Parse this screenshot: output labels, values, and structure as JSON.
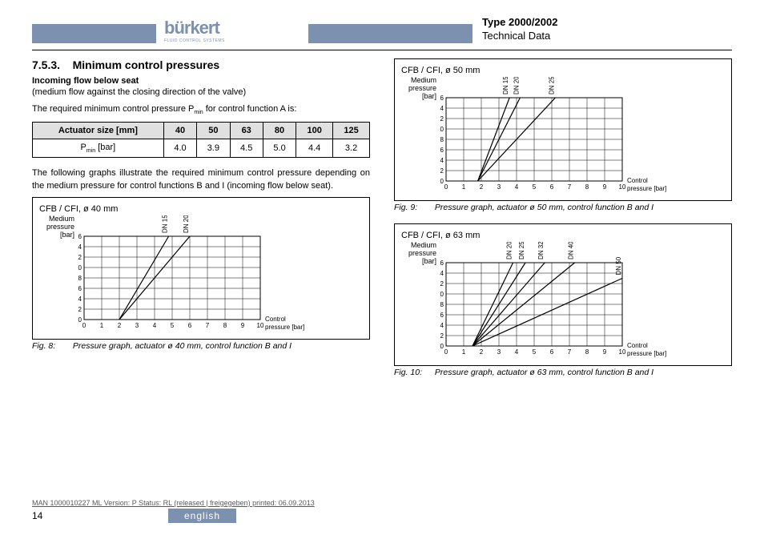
{
  "header": {
    "logo": "bürkert",
    "logo_sub": "FLUID CONTROL SYSTEMS",
    "type": "Type 2000/2002",
    "subtitle": "Technical Data",
    "logo_color": "#7c90b0",
    "bar_color": "#7c90b0"
  },
  "section": {
    "num": "7.5.3.",
    "title": "Minimum control pressures",
    "subhead": "Incoming flow below seat",
    "line1": "(medium flow against the closing direction of the valve)",
    "line2_a": "The required minimum control pressure P",
    "line2_sub": "min",
    "line2_b": " for control function A is:",
    "para2": "The following graphs illustrate the required minimum control pressure depending on the medium pressure for control functions B and I (incoming flow below seat)."
  },
  "table": {
    "header_label": "Actuator size [mm]",
    "cols": [
      "40",
      "50",
      "63",
      "80",
      "100",
      "125"
    ],
    "row_label_a": "P",
    "row_label_sub": "min",
    "row_label_b": " [bar]",
    "row": [
      "4.0",
      "3.9",
      "4.5",
      "5.0",
      "4.4",
      "3.2"
    ]
  },
  "chart_common": {
    "ylabel": "Medium pressure [bar]",
    "xlabel": "Control pressure [bar]",
    "x_ticks": [
      0,
      1,
      2,
      3,
      4,
      5,
      6,
      7,
      8,
      9,
      10
    ],
    "y_ticks": [
      0,
      2,
      4,
      6,
      8,
      10,
      12,
      14,
      16
    ],
    "grid_color": "#000000",
    "line_color": "#000000",
    "bg": "#ffffff"
  },
  "charts": [
    {
      "title": "CFB / CFI, ø 40 mm",
      "caption_label": "Fig. 8:",
      "caption": "Pressure graph, actuator ø 40 mm, control function B and I",
      "lines": [
        {
          "label": "DN 15",
          "points": [
            [
              2.0,
              0
            ],
            [
              4.8,
              16
            ]
          ]
        },
        {
          "label": "DN 20",
          "points": [
            [
              2.0,
              0
            ],
            [
              6.0,
              16
            ]
          ]
        }
      ]
    },
    {
      "title": "CFB / CFI, ø 50 mm",
      "caption_label": "Fig. 9:",
      "caption": "Pressure graph, actuator ø 50 mm, control function B and I",
      "lines": [
        {
          "label": "DN 15",
          "points": [
            [
              1.8,
              0
            ],
            [
              3.6,
              16
            ]
          ]
        },
        {
          "label": "DN 20",
          "points": [
            [
              1.8,
              0
            ],
            [
              4.2,
              16
            ]
          ]
        },
        {
          "label": "DN 25",
          "points": [
            [
              1.8,
              0
            ],
            [
              6.2,
              16
            ]
          ]
        }
      ]
    },
    {
      "title": "CFB / CFI, ø 63 mm",
      "caption_label": "Fig. 10:",
      "caption": "Pressure graph, actuator ø 63 mm, control function B and I",
      "lines": [
        {
          "label": "DN 20",
          "points": [
            [
              1.5,
              0
            ],
            [
              3.8,
              16
            ]
          ]
        },
        {
          "label": "DN 25",
          "points": [
            [
              1.5,
              0
            ],
            [
              4.5,
              16
            ]
          ]
        },
        {
          "label": "DN 32",
          "points": [
            [
              1.5,
              0
            ],
            [
              5.6,
              16
            ]
          ]
        },
        {
          "label": "DN 40",
          "points": [
            [
              1.5,
              0
            ],
            [
              7.3,
              16
            ]
          ]
        },
        {
          "label": "DN 50",
          "points": [
            [
              1.5,
              0
            ],
            [
              10.0,
              13
            ]
          ]
        }
      ]
    }
  ],
  "footer": {
    "meta": "MAN  1000010227  ML   Version: P Status: RL  (released | freigegeben)   printed: 06.09.2013",
    "page": "14",
    "lang": "english"
  }
}
